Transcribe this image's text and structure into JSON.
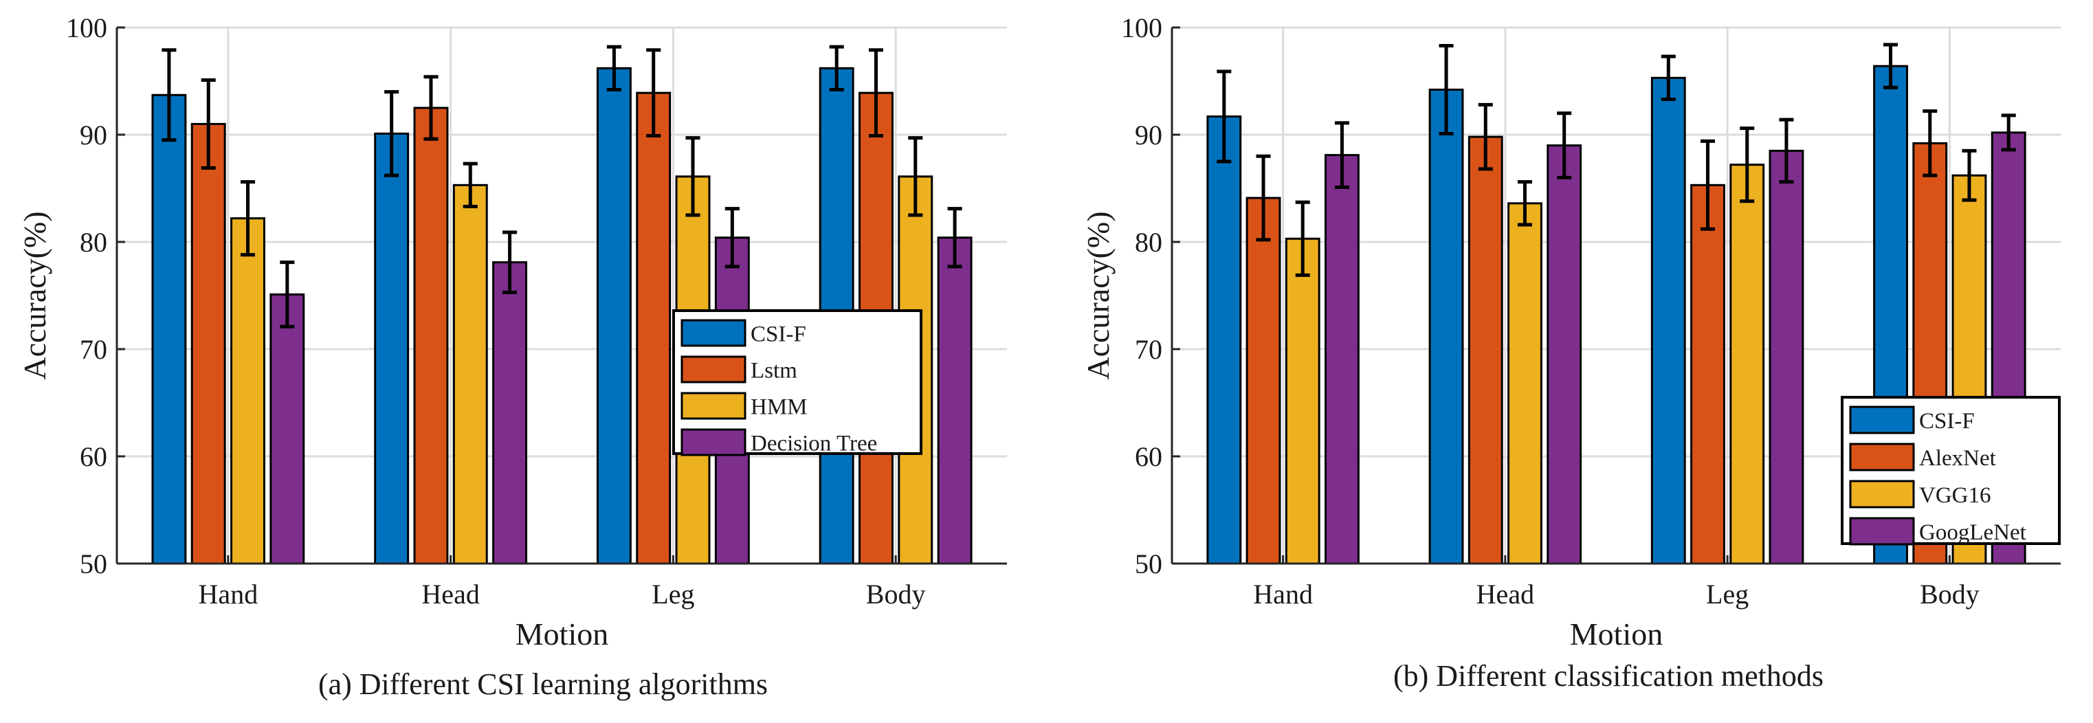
{
  "chart_data": [
    {
      "type": "bar",
      "title": "",
      "caption": "(a) Different CSI learning algorithms",
      "xlabel": "Motion",
      "ylabel": "Accuracy(%)",
      "ylim": [
        50,
        100
      ],
      "yticks": [
        50,
        60,
        70,
        80,
        90,
        100
      ],
      "grid": true,
      "legend_position": "right-center",
      "categories": [
        "Hand",
        "Head",
        "Leg",
        "Body"
      ],
      "series": [
        {
          "name": "CSI-F",
          "color": "#0072BD",
          "values": [
            93.7,
            90.1,
            96.2,
            96.2
          ],
          "errors": [
            4.2,
            3.9,
            2.0,
            2.0
          ]
        },
        {
          "name": "Lstm",
          "color": "#D95319",
          "values": [
            91.0,
            92.5,
            93.9,
            93.9
          ],
          "errors": [
            4.1,
            2.9,
            4.0,
            4.0
          ]
        },
        {
          "name": "HMM",
          "color": "#EDB120",
          "values": [
            82.2,
            85.3,
            86.1,
            86.1
          ],
          "errors": [
            3.4,
            2.0,
            3.6,
            3.6
          ]
        },
        {
          "name": "Decision Tree",
          "color": "#7E2F8E",
          "values": [
            75.1,
            78.1,
            80.4,
            80.4
          ],
          "errors": [
            3.0,
            2.8,
            2.7,
            2.7
          ]
        }
      ]
    },
    {
      "type": "bar",
      "title": "",
      "caption": "(b) Different classification methods",
      "xlabel": "Motion",
      "ylabel": "Accuracy(%)",
      "ylim": [
        50,
        100
      ],
      "yticks": [
        50,
        60,
        70,
        80,
        90,
        100
      ],
      "grid": true,
      "legend_position": "bottom-right",
      "categories": [
        "Hand",
        "Head",
        "Leg",
        "Body"
      ],
      "series": [
        {
          "name": "CSI-F",
          "color": "#0072BD",
          "values": [
            91.7,
            94.2,
            95.3,
            96.4
          ],
          "errors": [
            4.2,
            4.1,
            2.0,
            2.0
          ]
        },
        {
          "name": "AlexNet",
          "color": "#D95319",
          "values": [
            84.1,
            89.8,
            85.3,
            89.2
          ],
          "errors": [
            3.9,
            3.0,
            4.1,
            3.0
          ]
        },
        {
          "name": "VGG16",
          "color": "#EDB120",
          "values": [
            80.3,
            83.6,
            87.2,
            86.2
          ],
          "errors": [
            3.4,
            2.0,
            3.4,
            2.3
          ]
        },
        {
          "name": "GoogLeNet",
          "color": "#7E2F8E",
          "values": [
            88.1,
            89.0,
            88.5,
            90.2
          ],
          "errors": [
            3.0,
            3.0,
            2.9,
            1.6
          ]
        }
      ]
    }
  ]
}
